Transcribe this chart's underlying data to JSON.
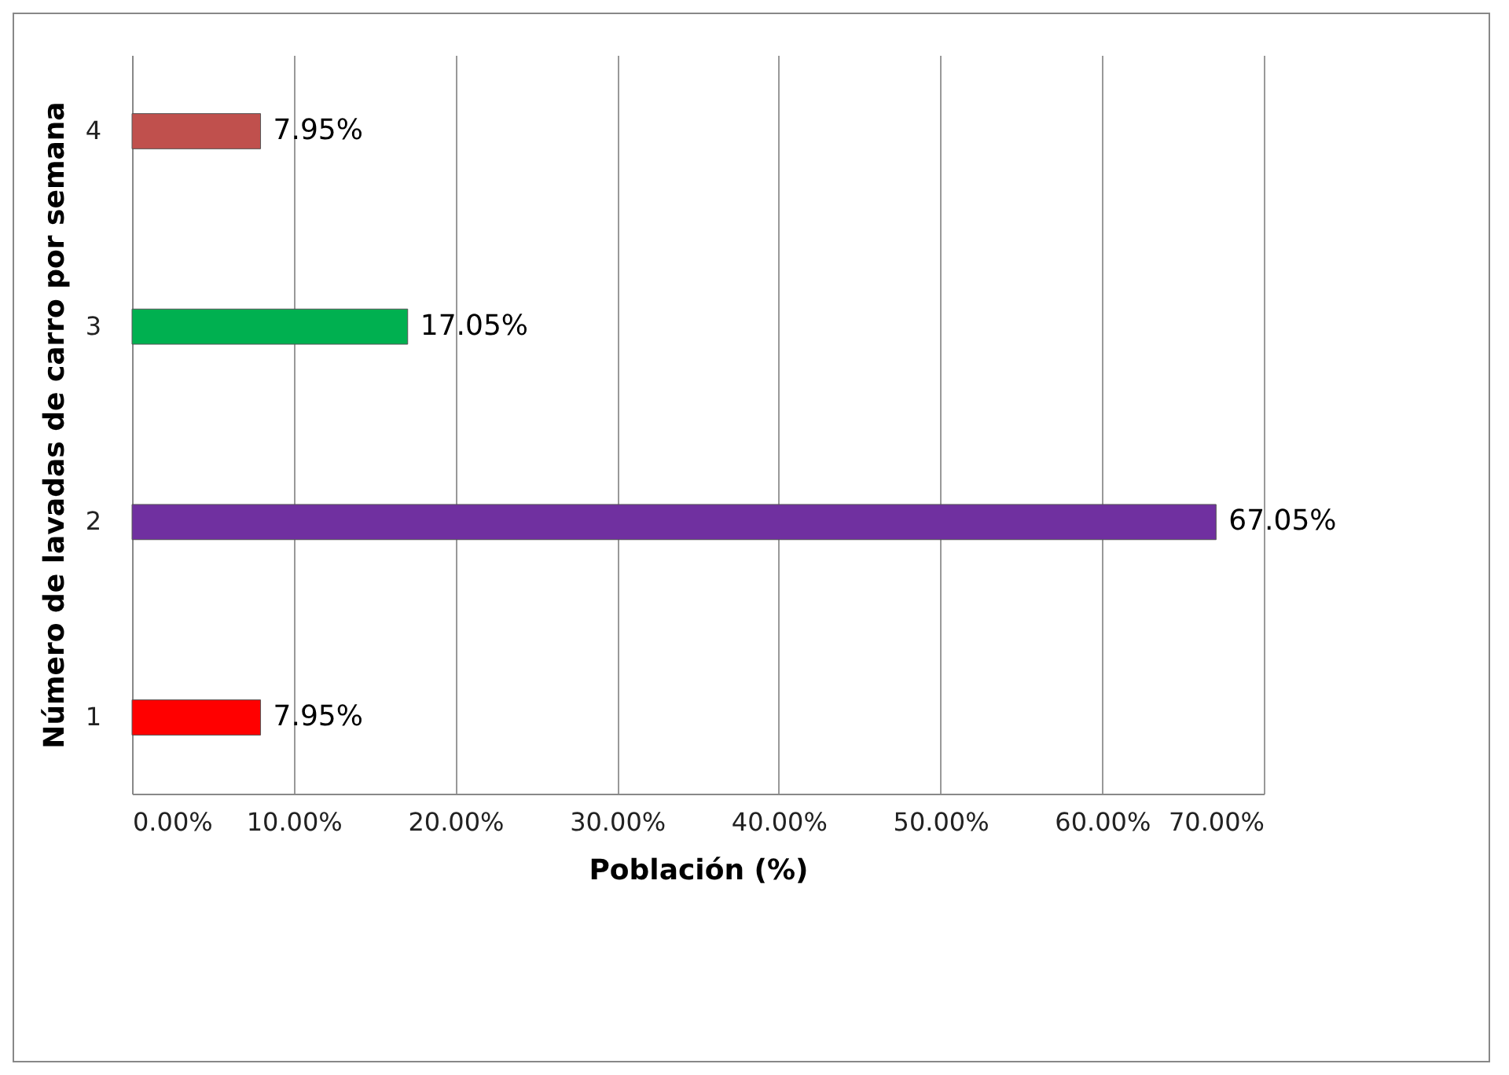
{
  "chart_data": {
    "type": "bar",
    "orientation": "horizontal",
    "xlabel": "Población (%)",
    "ylabel": "Número de lavadas de carro por semana",
    "categories": [
      "4",
      "3",
      "2",
      "1"
    ],
    "values": [
      7.95,
      17.05,
      67.05,
      7.95
    ],
    "colors": [
      "#c0504d",
      "#00b050",
      "#7030a0",
      "#ff0000"
    ],
    "value_labels": [
      "7.95%",
      "17.05%",
      "67.05%",
      "7.95%"
    ],
    "xlim": [
      0,
      70
    ],
    "xticks": [
      {
        "value": 0,
        "label": "0.00%"
      },
      {
        "value": 10,
        "label": "10.00%"
      },
      {
        "value": 20,
        "label": "20.00%"
      },
      {
        "value": 30,
        "label": "30.00%"
      },
      {
        "value": 40,
        "label": "40.00%"
      },
      {
        "value": 50,
        "label": "50.00%"
      },
      {
        "value": 60,
        "label": "60.00%"
      },
      {
        "value": 70,
        "label": "70.00%"
      }
    ],
    "grid": "x",
    "legend": false
  }
}
